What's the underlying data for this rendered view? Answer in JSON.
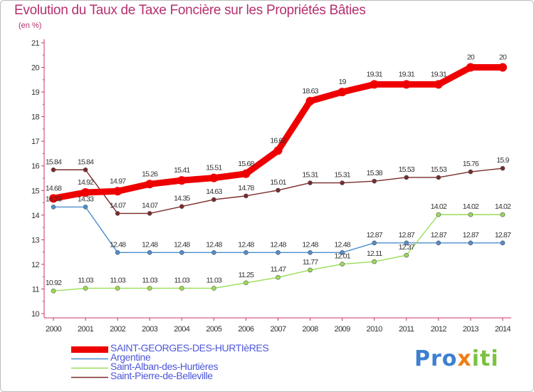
{
  "chart_data": {
    "type": "line",
    "title": "Evolution du Taux de Taxe Foncière sur les Propriétés Bâties",
    "unit_label": "(en %)",
    "categories": [
      "2000",
      "2001",
      "2002",
      "2003",
      "2004",
      "2005",
      "2006",
      "2007",
      "2008",
      "2009",
      "2010",
      "2011",
      "2012",
      "2013",
      "2014"
    ],
    "ylim": [
      10,
      21
    ],
    "yticks": [
      10,
      11,
      12,
      13,
      14,
      15,
      16,
      17,
      18,
      19,
      20,
      21
    ],
    "series": [
      {
        "name": "SAINT-GEORGES-DES-HURTIèRES",
        "color": "#ee0000",
        "values": [
          14.68,
          14.92,
          14.97,
          15.26,
          15.41,
          15.51,
          15.68,
          16.62,
          18.63,
          19,
          19.31,
          19.31,
          19.31,
          20,
          20
        ],
        "labels": [
          "14.68",
          "14.92",
          "14.97",
          "15.26",
          "15.41",
          "15.51",
          "15.68",
          "16.62",
          "18.63",
          "19",
          "19.31",
          "19.31",
          "19.31",
          "20",
          "20"
        ]
      },
      {
        "name": "Argentine",
        "color": "#4f8ed0",
        "values": [
          14.33,
          14.33,
          12.48,
          12.48,
          12.48,
          12.48,
          12.48,
          12.48,
          12.48,
          12.48,
          12.87,
          12.87,
          12.87,
          12.87,
          12.87
        ],
        "labels": [
          "14.33",
          "14.33",
          "12.48",
          "12.48",
          "12.48",
          "12.48",
          "12.48",
          "12.48",
          "12.48",
          "12.48",
          "12.87",
          "12.87",
          "12.87",
          "12.87",
          "12.87"
        ]
      },
      {
        "name": "Saint-Alban-des-Hurtières",
        "color": "#99dd55",
        "values": [
          10.92,
          11.03,
          11.03,
          11.03,
          11.03,
          11.03,
          11.25,
          11.47,
          11.77,
          12.01,
          12.11,
          12.37,
          14.02,
          14.02,
          14.02
        ],
        "labels": [
          "10.92",
          "11.03",
          "11.03",
          "11.03",
          "11.03",
          "11.03",
          "11.25",
          "11.47",
          "11.77",
          "12.01",
          "12.11",
          "12.37",
          "14.02",
          "14.02",
          "14.02"
        ]
      },
      {
        "name": "Saint-Pierre-de-Belleville",
        "color": "#7a2a2a",
        "values": [
          15.84,
          15.84,
          14.07,
          14.07,
          14.35,
          14.63,
          14.78,
          15.01,
          15.31,
          15.31,
          15.38,
          15.53,
          15.53,
          15.76,
          15.9
        ],
        "labels": [
          "15.84",
          "15.84",
          "14.07",
          "14.07",
          "14.35",
          "14.63",
          "14.78",
          "15.01",
          "15.31",
          "15.31",
          "15.38",
          "15.53",
          "15.53",
          "15.76",
          "15.9"
        ]
      }
    ],
    "legend_position": "bottom-left",
    "grid": false
  },
  "logo": {
    "text_a": "Pro",
    "text_b": "x",
    "text_c": "iti"
  }
}
